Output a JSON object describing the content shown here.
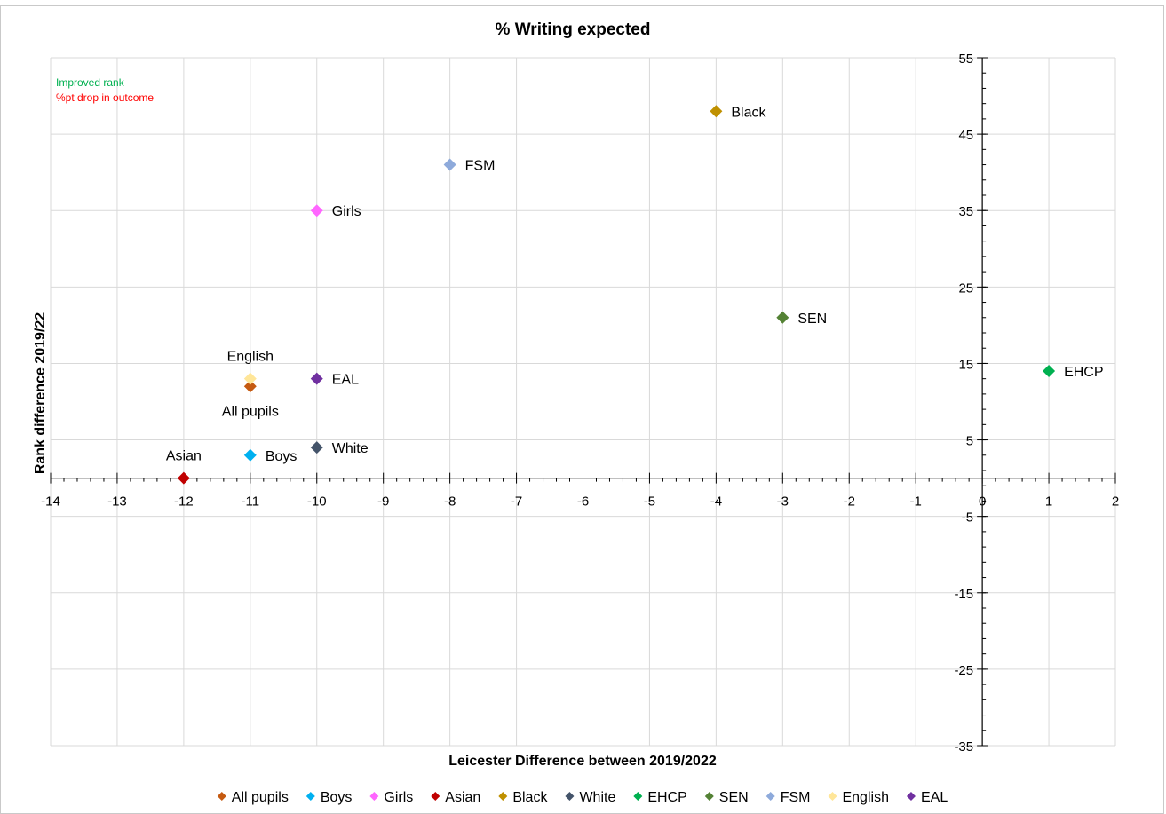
{
  "chart_data": {
    "type": "scatter",
    "title": "% Writing expected",
    "xlabel": "Leicester Difference between 2019/2022",
    "ylabel": "Rank difference 2019/22",
    "xlim": [
      -14,
      2
    ],
    "ylim": [
      -35,
      55
    ],
    "x_ticks": [
      "-14",
      "-13",
      "-12",
      "-11",
      "-10",
      "-9",
      "-8",
      "-7",
      "-6",
      "-5",
      "-4",
      "-3",
      "-2",
      "-1",
      "0",
      "1",
      "2"
    ],
    "y_ticks": [
      "55",
      "45",
      "35",
      "25",
      "15",
      "5",
      "-5",
      "-15",
      "-25",
      "-35"
    ],
    "grid": true,
    "legend_position": "bottom",
    "annotations": [
      "Improved rank",
      "%pt drop in outcome"
    ],
    "annotation_colors": [
      "#00b050",
      "#ff0000"
    ],
    "series": [
      {
        "name": "All pupils",
        "x": -11,
        "y": 12,
        "color": "#c55a11",
        "label": "All pupils",
        "label_pos": "below"
      },
      {
        "name": "Boys",
        "x": -11,
        "y": 3,
        "color": "#00b0f0",
        "label": "Boys",
        "label_pos": "right"
      },
      {
        "name": "Girls",
        "x": -10,
        "y": 35,
        "color": "#ff66ff",
        "label": "Girls",
        "label_pos": "right"
      },
      {
        "name": "Asian",
        "x": -12,
        "y": 0,
        "color": "#c00000",
        "label": "Asian",
        "label_pos": "above"
      },
      {
        "name": "Black",
        "x": -4,
        "y": 48,
        "color": "#bf9000",
        "label": "Black",
        "label_pos": "right"
      },
      {
        "name": "White",
        "x": -10,
        "y": 4,
        "color": "#44546a",
        "label": "White",
        "label_pos": "right"
      },
      {
        "name": "EHCP",
        "x": 1,
        "y": 14,
        "color": "#00b050",
        "label": "EHCP",
        "label_pos": "right"
      },
      {
        "name": "SEN",
        "x": -3,
        "y": 21,
        "color": "#548235",
        "label": "SEN",
        "label_pos": "right"
      },
      {
        "name": "FSM",
        "x": -8,
        "y": 41,
        "color": "#8eaadb",
        "label": "FSM",
        "label_pos": "right"
      },
      {
        "name": "English",
        "x": -11,
        "y": 13,
        "color": "#ffe699",
        "label": "English",
        "label_pos": "above"
      },
      {
        "name": "EAL",
        "x": -10,
        "y": 13,
        "color": "#7030a0",
        "label": "EAL",
        "label_pos": "right"
      }
    ]
  }
}
